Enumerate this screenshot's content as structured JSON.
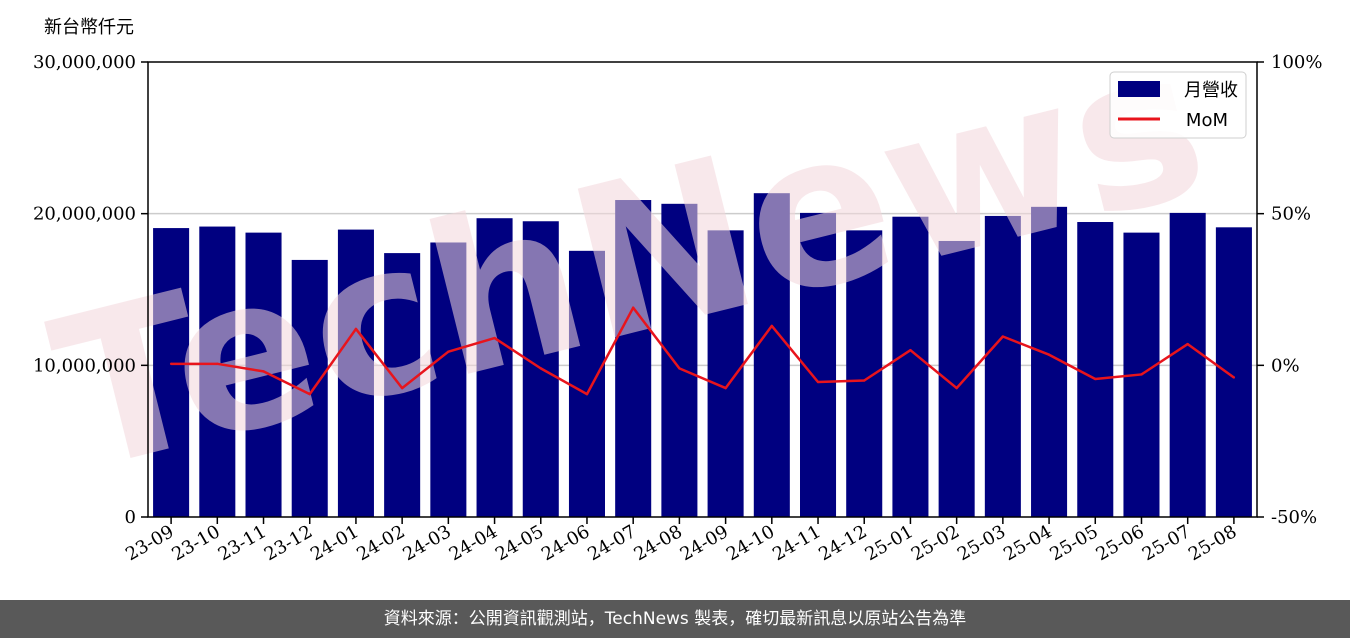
{
  "footer": {
    "source_text": "資料來源：公開資訊觀測站，TechNews 製表，確切最新訊息以原站公告為準"
  },
  "watermark": {
    "text": "TechNews"
  },
  "colors": {
    "bar": "#000080",
    "line": "#e8141c",
    "grid": "#cccccc",
    "footer_bg": "#595959"
  },
  "chart_data": {
    "type": "bar",
    "y_unit_label": "新台幣仟元",
    "categories": [
      "23-09",
      "23-10",
      "23-11",
      "23-12",
      "24-01",
      "24-02",
      "24-03",
      "24-04",
      "24-05",
      "24-06",
      "24-07",
      "24-08",
      "24-09",
      "24-10",
      "24-11",
      "24-12",
      "25-01",
      "25-02",
      "25-03",
      "25-04",
      "25-05",
      "25-06",
      "25-07",
      "25-08"
    ],
    "series": [
      {
        "name": "月營收",
        "type": "bar",
        "axis": "left",
        "values": [
          19050000,
          19150000,
          18750000,
          16950000,
          18950000,
          17400000,
          18100000,
          19700000,
          19500000,
          17550000,
          20900000,
          20650000,
          18900000,
          21350000,
          20050000,
          18900000,
          19800000,
          18200000,
          19850000,
          20450000,
          19450000,
          18750000,
          20050000,
          19100000
        ]
      },
      {
        "name": "MoM",
        "type": "line",
        "axis": "right",
        "values": [
          0.5,
          0.5,
          -2.0,
          -9.5,
          12.0,
          -7.5,
          4.5,
          9.0,
          -1.0,
          -9.5,
          19.0,
          -1.0,
          -7.5,
          13.0,
          -5.5,
          -5.0,
          5.0,
          -7.5,
          9.5,
          3.5,
          -4.5,
          -3.0,
          7.0,
          -4.0
        ]
      }
    ],
    "y_left": {
      "min": 0,
      "max": 30000000,
      "ticks": [
        0,
        10000000,
        20000000,
        30000000
      ],
      "tick_labels": [
        "0",
        "10,000,000",
        "20,000,000",
        "30,000,000"
      ]
    },
    "y_right": {
      "min": -50,
      "max": 100,
      "ticks": [
        -50,
        0,
        50,
        100
      ],
      "tick_labels": [
        "-50%",
        "0%",
        "50%",
        "100%"
      ]
    },
    "grid": "horizontal",
    "legend_position": "top-right"
  }
}
